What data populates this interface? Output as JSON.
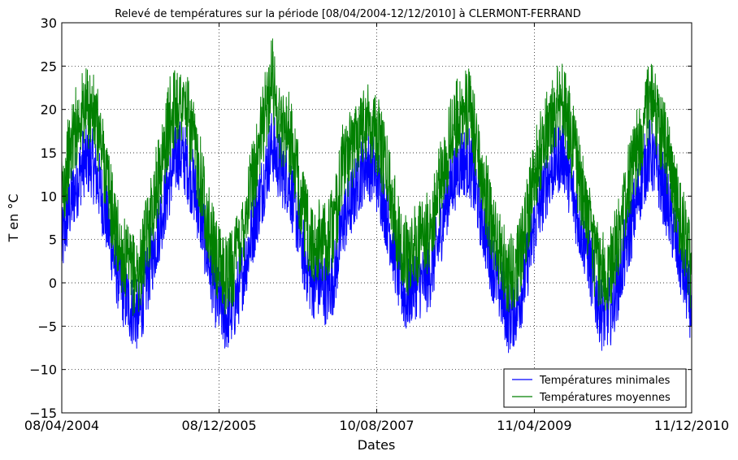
{
  "chart_data": {
    "type": "line",
    "title": "Relevé de températures sur la période [08/04/2004-12/12/2010] à CLERMONT-FERRAND",
    "xlabel": "Dates",
    "ylabel": "T en °C",
    "xlim": [
      "2004-04-08",
      "2010-12-11"
    ],
    "ylim": [
      -15,
      30
    ],
    "xticks": [
      "2004-04-08",
      "2005-12-08",
      "2007-08-10",
      "2009-04-11",
      "2010-12-11"
    ],
    "xtick_labels": [
      "08/04/2004",
      "08/12/2005",
      "10/08/2007",
      "11/04/2009",
      "11/12/2010"
    ],
    "yticks": [
      -15,
      -10,
      -5,
      0,
      5,
      10,
      15,
      20,
      25,
      30
    ],
    "grid": true,
    "legend_position": "lower-right",
    "series_note": "monthly approximate levels read from chart",
    "series": [
      {
        "name": "Températures minimales",
        "color": "#0000ff",
        "x": [
          "2004-04-08",
          "2004-05-01",
          "2004-06-01",
          "2004-07-01",
          "2004-08-01",
          "2004-09-01",
          "2004-10-01",
          "2004-11-01",
          "2004-12-01",
          "2005-01-01",
          "2005-02-01",
          "2005-03-01",
          "2005-04-01",
          "2005-05-01",
          "2005-06-01",
          "2005-07-01",
          "2005-08-01",
          "2005-09-01",
          "2005-10-01",
          "2005-11-01",
          "2005-12-01",
          "2006-01-01",
          "2006-02-01",
          "2006-03-01",
          "2006-04-01",
          "2006-05-01",
          "2006-06-01",
          "2006-07-01",
          "2006-08-01",
          "2006-09-01",
          "2006-10-01",
          "2006-11-01",
          "2006-12-01",
          "2007-01-01",
          "2007-02-01",
          "2007-03-01",
          "2007-04-01",
          "2007-05-01",
          "2007-06-01",
          "2007-07-01",
          "2007-08-01",
          "2007-09-01",
          "2007-10-01",
          "2007-11-01",
          "2007-12-01",
          "2008-01-01",
          "2008-02-01",
          "2008-03-01",
          "2008-04-01",
          "2008-05-01",
          "2008-06-01",
          "2008-07-01",
          "2008-08-01",
          "2008-09-01",
          "2008-10-01",
          "2008-11-01",
          "2008-12-01",
          "2009-01-01",
          "2009-02-01",
          "2009-03-01",
          "2009-04-01",
          "2009-05-01",
          "2009-06-01",
          "2009-07-01",
          "2009-08-01",
          "2009-09-01",
          "2009-10-01",
          "2009-11-01",
          "2009-12-01",
          "2010-01-01",
          "2010-02-01",
          "2010-03-01",
          "2010-04-01",
          "2010-05-01",
          "2010-06-01",
          "2010-07-01",
          "2010-08-01",
          "2010-09-01",
          "2010-10-01",
          "2010-11-01",
          "2010-12-11"
        ],
        "values": [
          4,
          8,
          11,
          14,
          14,
          11,
          7,
          2,
          -1,
          -3,
          -4,
          0,
          4,
          8,
          12,
          15,
          14,
          11,
          7,
          2,
          -2,
          -4,
          -3,
          0,
          4,
          8,
          12,
          16,
          13,
          12,
          8,
          3,
          0,
          0,
          -1,
          1,
          7,
          9,
          12,
          14,
          13,
          10,
          6,
          1,
          -2,
          0,
          0,
          1,
          4,
          9,
          12,
          14,
          14,
          10,
          6,
          2,
          -1,
          -4,
          -3,
          0,
          5,
          9,
          12,
          14,
          15,
          11,
          7,
          4,
          -1,
          -4,
          -3,
          0,
          4,
          8,
          12,
          15,
          13,
          10,
          6,
          2,
          -3
        ]
      },
      {
        "name": "Températures moyennes",
        "color": "#008000",
        "x": [
          "2004-04-08",
          "2004-05-01",
          "2004-06-01",
          "2004-07-01",
          "2004-08-01",
          "2004-09-01",
          "2004-10-01",
          "2004-11-01",
          "2004-12-01",
          "2005-01-01",
          "2005-02-01",
          "2005-03-01",
          "2005-04-01",
          "2005-05-01",
          "2005-06-01",
          "2005-07-01",
          "2005-08-01",
          "2005-09-01",
          "2005-10-01",
          "2005-11-01",
          "2005-12-01",
          "2006-01-01",
          "2006-02-01",
          "2006-03-01",
          "2006-04-01",
          "2006-05-01",
          "2006-06-01",
          "2006-07-01",
          "2006-08-01",
          "2006-09-01",
          "2006-10-01",
          "2006-11-01",
          "2006-12-01",
          "2007-01-01",
          "2007-02-01",
          "2007-03-01",
          "2007-04-01",
          "2007-05-01",
          "2007-06-01",
          "2007-07-01",
          "2007-08-01",
          "2007-09-01",
          "2007-10-01",
          "2007-11-01",
          "2007-12-01",
          "2008-01-01",
          "2008-02-01",
          "2008-03-01",
          "2008-04-01",
          "2008-05-01",
          "2008-06-01",
          "2008-07-01",
          "2008-08-01",
          "2008-09-01",
          "2008-10-01",
          "2008-11-01",
          "2008-12-01",
          "2009-01-01",
          "2009-02-01",
          "2009-03-01",
          "2009-04-01",
          "2009-05-01",
          "2009-06-01",
          "2009-07-01",
          "2009-08-01",
          "2009-09-01",
          "2009-10-01",
          "2009-11-01",
          "2009-12-01",
          "2010-01-01",
          "2010-02-01",
          "2010-03-01",
          "2010-04-01",
          "2010-05-01",
          "2010-06-01",
          "2010-07-01",
          "2010-08-01",
          "2010-09-01",
          "2010-10-01",
          "2010-11-01",
          "2010-12-11"
        ],
        "values": [
          10,
          14,
          18,
          20,
          20,
          17,
          12,
          6,
          3,
          1,
          1,
          5,
          10,
          14,
          19,
          21,
          20,
          16,
          12,
          6,
          2,
          1,
          2,
          5,
          10,
          14,
          19,
          24,
          18,
          18,
          13,
          8,
          4,
          5,
          5,
          7,
          14,
          15,
          18,
          19,
          18,
          15,
          11,
          6,
          3,
          4,
          5,
          6,
          10,
          14,
          18,
          20,
          20,
          16,
          11,
          6,
          3,
          1,
          2,
          5,
          11,
          15,
          18,
          20,
          21,
          17,
          12,
          8,
          3,
          1,
          2,
          5,
          10,
          14,
          18,
          21,
          19,
          16,
          11,
          7,
          1
        ]
      }
    ]
  }
}
